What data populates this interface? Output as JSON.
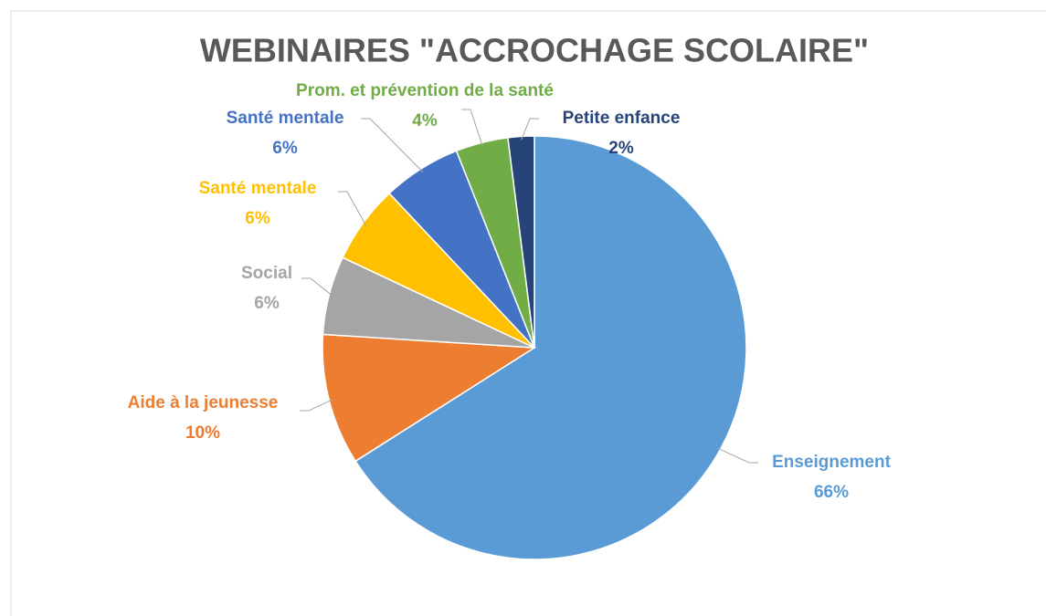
{
  "chart_data": {
    "type": "pie",
    "title": "WEBINAIRES \"ACCROCHAGE SCOLAIRE\"",
    "categories": [
      "Enseignement",
      "Aide à la jeunesse",
      "Social",
      "Santé mentale",
      "Santé mentale",
      "Prom. et prévention de la santé",
      "Petite enfance"
    ],
    "values": [
      66,
      10,
      6,
      6,
      6,
      4,
      2
    ],
    "value_labels": [
      "66%",
      "10%",
      "6%",
      "6%",
      "6%",
      "4%",
      "2%"
    ],
    "colors": [
      "#5b9bd5",
      "#ed7d31",
      "#a5a5a5",
      "#ffc000",
      "#4472c4",
      "#70ad47",
      "#264478"
    ]
  }
}
